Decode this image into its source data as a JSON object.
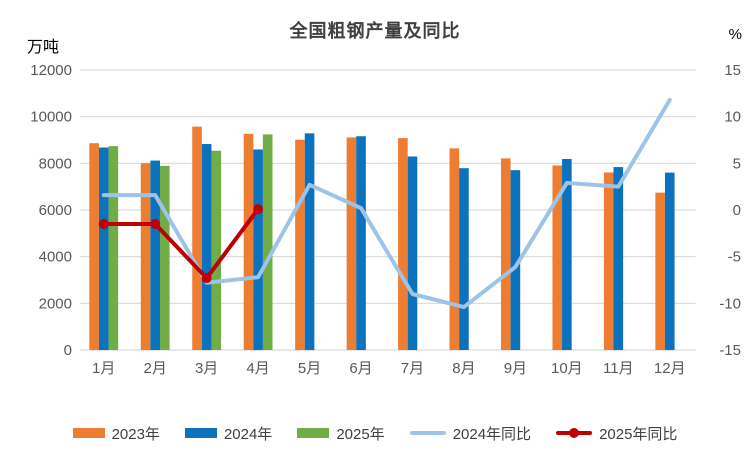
{
  "chart_data": {
    "type": "combo-bar-line",
    "title": "全国粗钢产量及同比",
    "categories": [
      "1月",
      "2月",
      "3月",
      "4月",
      "5月",
      "6月",
      "7月",
      "8月",
      "9月",
      "10月",
      "11月",
      "12月"
    ],
    "left_axis": {
      "title": "万吨",
      "min": 0,
      "max": 12000,
      "ticks": [
        12000,
        10000,
        8000,
        6000,
        4000,
        2000,
        0
      ]
    },
    "right_axis": {
      "title": "%",
      "min": -15,
      "max": 15,
      "ticks": [
        15,
        10,
        5,
        0,
        -5,
        -10,
        -15
      ]
    },
    "grid": true,
    "legend_position": "bottom",
    "bar_series": [
      {
        "name": "2023年",
        "color": "#ED7D31",
        "values": [
          8863,
          8007,
          9573,
          9264,
          9012,
          9111,
          9080,
          8641,
          8211,
          7909,
          7610,
          6744
        ]
      },
      {
        "name": "2024年",
        "color": "#0C72BE",
        "values": [
          8678,
          8118,
          8827,
          8594,
          9286,
          9161,
          8294,
          7792,
          7707,
          8188,
          7840,
          7603
        ]
      },
      {
        "name": "2025年",
        "color": "#70AD47",
        "values": [
          8737,
          7892,
          8540,
          9240,
          null,
          null,
          null,
          null,
          null,
          null,
          null,
          null
        ]
      }
    ],
    "line_series": [
      {
        "name": "2024年同比",
        "color": "#9DC3E6",
        "axis": "right",
        "marker": false,
        "values": [
          1.6,
          1.6,
          -7.8,
          -7.2,
          2.7,
          0.2,
          -9.0,
          -10.4,
          -6.1,
          2.9,
          2.5,
          11.8
        ]
      },
      {
        "name": "2025年同比",
        "color": "#C00000",
        "axis": "right",
        "marker": true,
        "values": [
          -1.5,
          -1.5,
          -7.3,
          0.1,
          null,
          null,
          null,
          null,
          null,
          null,
          null,
          null
        ]
      }
    ],
    "styles": {
      "gridline_color": "#D9D9D9",
      "axis_text_color": "#595959",
      "title_color": "#404040",
      "background": "#FFFFFF"
    }
  }
}
